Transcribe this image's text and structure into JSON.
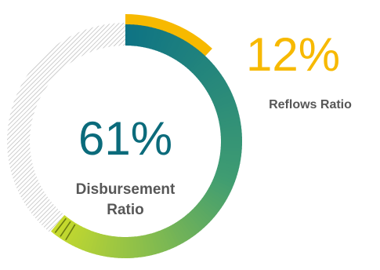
{
  "chart_data": {
    "type": "donut",
    "series": [
      {
        "name": "Disbursement Ratio",
        "value": 61,
        "display": "61%",
        "label_line1": "Disbursement",
        "label_line2": "Ratio"
      },
      {
        "name": "Reflows Ratio",
        "value": 12,
        "display": "12%",
        "label": "Reflows Ratio"
      }
    ],
    "total": 100
  },
  "colors": {
    "reflows": "#f7b900",
    "gradient_start": "#0e7384",
    "gradient_mid": "#3f9c72",
    "gradient_end": "#c7da2c",
    "hatch": "#b8b8b8",
    "text_main": "#0b6b7b",
    "text_reflows": "#f7b900",
    "text_label": "#575757"
  }
}
